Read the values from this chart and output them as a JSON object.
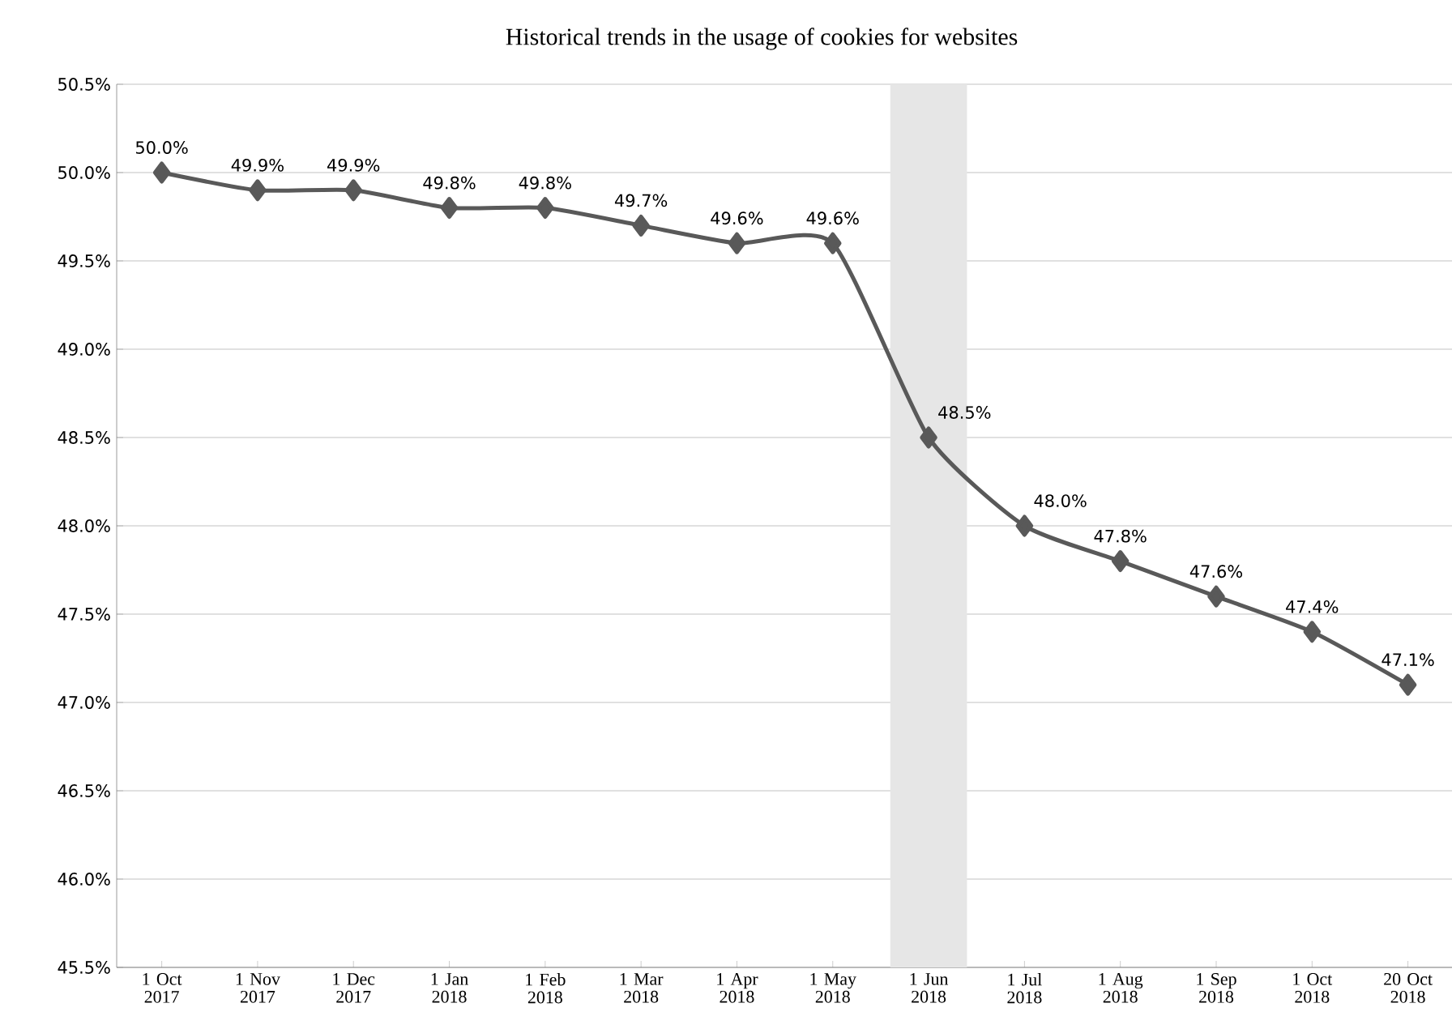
{
  "chart_data": {
    "type": "line",
    "title": "Historical trends in the usage of cookies for websites",
    "categories": [
      "1 Oct 2017",
      "1 Nov 2017",
      "1 Dec 2017",
      "1 Jan 2018",
      "1 Feb 2018",
      "1 Mar 2018",
      "1 Apr 2018",
      "1 May 2018",
      "1 Jun 2018",
      "1 Jul 2018",
      "1 Aug 2018",
      "1 Sep 2018",
      "1 Oct 2018",
      "20 Oct 2018"
    ],
    "series": [
      {
        "color": "#595959",
        "values": [
          50.0,
          49.9,
          49.9,
          49.8,
          49.8,
          49.7,
          49.6,
          49.6,
          48.5,
          48.0,
          47.8,
          47.6,
          47.4,
          47.1
        ]
      }
    ],
    "ylim": [
      45.5,
      50.5
    ],
    "yticks": [
      {
        "value": 45.5,
        "label": "45.5%"
      },
      {
        "value": 46.0,
        "label": "46.0%"
      },
      {
        "value": 46.5,
        "label": "46.5%"
      },
      {
        "value": 47.0,
        "label": "47.0%"
      },
      {
        "value": 47.5,
        "label": "47.5%"
      },
      {
        "value": 48.0,
        "label": "48.0%"
      },
      {
        "value": 48.5,
        "label": "48.5%"
      },
      {
        "value": 49.0,
        "label": "49.0%"
      },
      {
        "value": 49.5,
        "label": "49.5%"
      },
      {
        "value": 50.0,
        "label": "50.0%"
      },
      {
        "value": 50.5,
        "label": "50.5%"
      }
    ],
    "value_labels": [
      "50.0%",
      "49.9%",
      "49.9%",
      "49.8%",
      "49.8%",
      "49.7%",
      "49.6%",
      "49.6%",
      "48.5%",
      "48.0%",
      "47.8%",
      "47.6%",
      "47.4%",
      "47.1%"
    ],
    "bands": [
      {
        "axis": "x",
        "from": "1 Jun 2018",
        "to": "1 Jun 2018",
        "color": "#e6e6e6"
      }
    ],
    "grid": "y",
    "marker": "diamond",
    "line_style": "solid"
  }
}
